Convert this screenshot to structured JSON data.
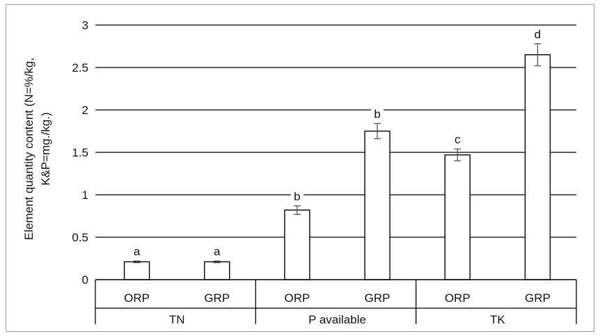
{
  "chart_data": {
    "type": "bar",
    "ylabel_lines": [
      "Element quantity content (N=%/kg,",
      "K&P=mg./kg.)"
    ],
    "ylim": [
      0,
      3
    ],
    "yticks": [
      0,
      0.5,
      1,
      1.5,
      2,
      2.5,
      3
    ],
    "ytick_labels": [
      "0",
      "0.5",
      "1",
      "1.5",
      "2",
      "2.5",
      "3"
    ],
    "grid": true,
    "groups": [
      {
        "label": "TN",
        "bars": [
          {
            "label": "ORP",
            "value": 0.21,
            "error": 0.01,
            "letter": "a"
          },
          {
            "label": "GRP",
            "value": 0.21,
            "error": 0.01,
            "letter": "a"
          }
        ]
      },
      {
        "label": "P available",
        "bars": [
          {
            "label": "ORP",
            "value": 0.82,
            "error": 0.05,
            "letter": "b"
          },
          {
            "label": "GRP",
            "value": 1.75,
            "error": 0.09,
            "letter": "b"
          }
        ]
      },
      {
        "label": "TK",
        "bars": [
          {
            "label": "ORP",
            "value": 1.47,
            "error": 0.07,
            "letter": "c"
          },
          {
            "label": "GRP",
            "value": 2.65,
            "error": 0.13,
            "letter": "d"
          }
        ]
      }
    ]
  }
}
